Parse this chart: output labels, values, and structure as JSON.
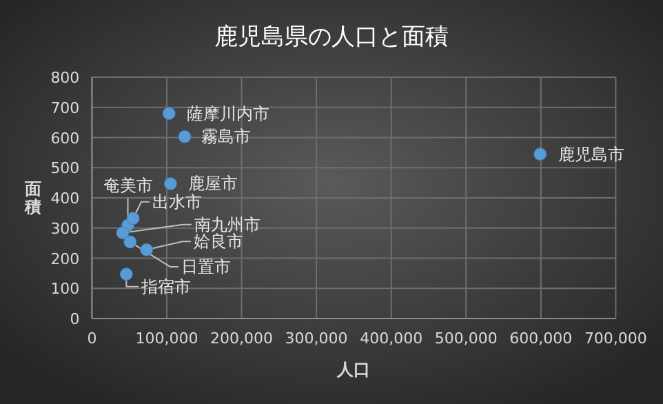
{
  "chart_data": {
    "type": "scatter",
    "title": "鹿児島県の人口と面積",
    "xlabel": "人口",
    "ylabel": "面積",
    "series": [
      {
        "color": "#5b9bd5",
        "x": [
          103000,
          124000,
          105000,
          599000,
          48000,
          55000,
          41000,
          73000,
          51000,
          46000
        ],
        "values": [
          680,
          603,
          447,
          545,
          309,
          332,
          284,
          228,
          254,
          147
        ]
      }
    ],
    "annotations": [
      {
        "text": "薩摩川内市",
        "x": 103000,
        "y": 680
      },
      {
        "text": "霧島市",
        "x": 124000,
        "y": 603
      },
      {
        "text": "鹿屋市",
        "x": 105000,
        "y": 447
      },
      {
        "text": "鹿児島市",
        "x": 599000,
        "y": 545
      },
      {
        "text": "奄美市",
        "x": 48000,
        "y": 309
      },
      {
        "text": "出水市",
        "x": 55000,
        "y": 332
      },
      {
        "text": "南九州市",
        "x": 41000,
        "y": 284
      },
      {
        "text": "姶良市",
        "x": 73000,
        "y": 228
      },
      {
        "text": "日置市",
        "x": 51000,
        "y": 254
      },
      {
        "text": "指宿市",
        "x": 46000,
        "y": 147
      }
    ],
    "xlim": [
      0,
      700000
    ],
    "ylim": [
      0,
      800
    ],
    "xticks": [
      {
        "value": 0,
        "label": "0"
      },
      {
        "value": 100000,
        "label": "100,000"
      },
      {
        "value": 200000,
        "label": "200,000"
      },
      {
        "value": 300000,
        "label": "300,000"
      },
      {
        "value": 400000,
        "label": "400,000"
      },
      {
        "value": 500000,
        "label": "500,000"
      },
      {
        "value": 600000,
        "label": "600,000"
      },
      {
        "value": 700000,
        "label": "700,000"
      }
    ],
    "yticks": [
      0,
      100,
      200,
      300,
      400,
      500,
      600,
      700,
      800
    ],
    "grid": true,
    "marker": "circle"
  }
}
